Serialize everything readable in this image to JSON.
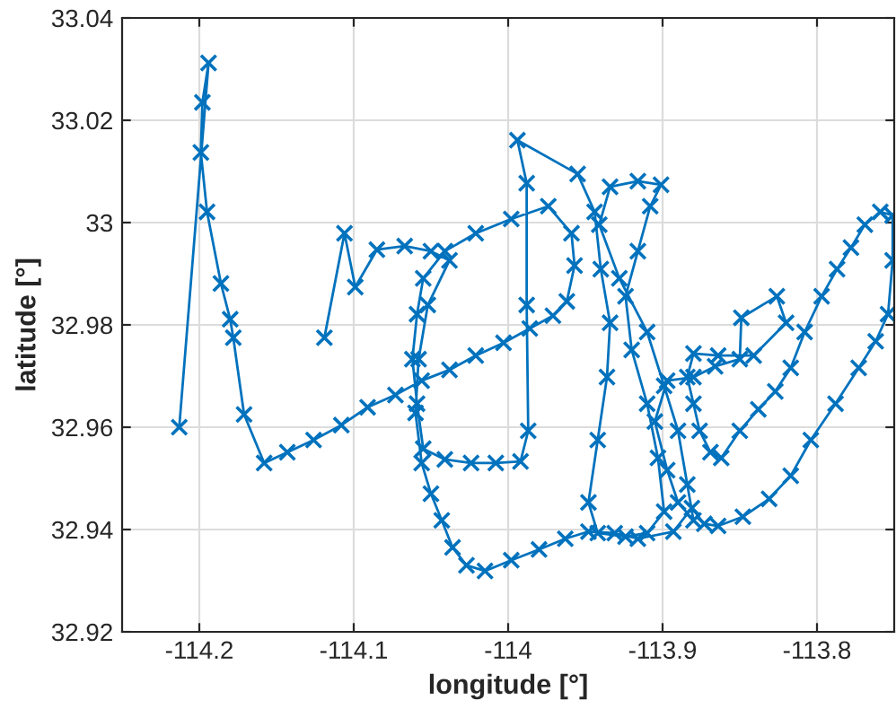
{
  "chart_data": {
    "type": "line",
    "xlabel": "longitude [°]",
    "ylabel": "latitude [°]",
    "marker": "cross",
    "line_style": "solid",
    "grid": true,
    "xlim": [
      -114.25,
      -113.75
    ],
    "xticks": [
      -114.2,
      -114.1,
      -114,
      -113.9,
      -113.8
    ],
    "ylim": [
      32.92,
      33.04
    ],
    "yticks": [
      32.92,
      32.94,
      32.96,
      32.98,
      33,
      33.02,
      33.04
    ],
    "series": [
      {
        "color": "#0072bd",
        "x": [
          -114.213,
          -114.194,
          -114.198,
          -114.199,
          -114.195,
          -114.186,
          -114.18,
          -114.178,
          -114.171,
          -114.158,
          -114.143,
          -114.126,
          -114.108,
          -114.091,
          -114.073,
          -114.056,
          -114.038,
          -114.021,
          -114.003,
          -113.986,
          -113.971,
          -113.962,
          -113.957,
          -113.959,
          -113.974,
          -113.998,
          -114.021,
          -114.041,
          -114.055,
          -114.059,
          -114.062,
          -114.059,
          -114.055,
          -114.041,
          -114.024,
          -114.008,
          -113.992,
          -113.987,
          -113.988,
          -113.988,
          -113.994,
          -113.955,
          -113.944,
          -113.94,
          -113.934,
          -113.936,
          -113.942,
          -113.948,
          -113.942,
          -113.924,
          -113.91,
          -113.899,
          -113.903,
          -113.91,
          -113.92,
          -113.924,
          -113.916,
          -113.908,
          -113.901,
          -113.916,
          -113.934,
          -113.941,
          -113.928,
          -113.91,
          -113.899,
          -113.89,
          -113.884,
          -113.88,
          -113.89,
          -113.897,
          -113.905,
          -113.897,
          -113.88,
          -113.866,
          -113.85,
          -113.849,
          -113.826,
          -113.82,
          -113.841,
          -113.864,
          -113.88,
          -113.884,
          -113.88,
          -113.876,
          -113.869,
          -113.862,
          -113.85,
          -113.838,
          -113.827,
          -113.817,
          -113.808,
          -113.797,
          -113.787,
          -113.778,
          -113.769,
          -113.759,
          -113.751,
          -113.751,
          -113.754,
          -113.762,
          -113.773,
          -113.788,
          -113.804,
          -113.817,
          -113.831,
          -113.848,
          -113.864,
          -113.873,
          -113.881,
          -113.893,
          -113.916,
          -113.931,
          -113.948,
          -113.963,
          -113.98,
          -113.998,
          -114.015,
          -114.027,
          -114.036,
          -114.043,
          -114.05,
          -114.056,
          -114.06,
          -114.058,
          -114.052,
          -114.038,
          -114.05,
          -114.067,
          -114.085,
          -114.099,
          -114.106,
          -114.119
        ],
        "values": [
          32.96,
          33.0312,
          33.0235,
          33.0137,
          33.0021,
          32.9881,
          32.9811,
          32.9775,
          32.9625,
          32.953,
          32.9551,
          32.9575,
          32.9604,
          32.9639,
          32.9663,
          32.9691,
          32.9712,
          32.974,
          32.9765,
          32.9793,
          32.9818,
          32.9846,
          32.9916,
          32.9979,
          33.0032,
          33.0007,
          32.9979,
          32.9944,
          32.9891,
          32.9821,
          32.9733,
          32.9646,
          32.9558,
          32.9537,
          32.953,
          32.953,
          32.9533,
          32.9593,
          32.9839,
          33.0077,
          33.0161,
          33.0095,
          33.0021,
          32.9909,
          32.9804,
          32.9698,
          32.9575,
          32.9453,
          32.9393,
          32.9386,
          32.9393,
          32.9435,
          32.954,
          32.9646,
          32.9751,
          32.9856,
          32.9944,
          33.0032,
          33.0074,
          33.0081,
          33.007,
          32.9996,
          32.9891,
          32.9786,
          32.9681,
          32.9593,
          32.9488,
          32.9418,
          32.9453,
          32.9516,
          32.9611,
          32.9691,
          32.9698,
          32.9719,
          32.9733,
          32.9814,
          32.9856,
          32.9804,
          32.974,
          32.974,
          32.9744,
          32.9698,
          32.9646,
          32.9593,
          32.9551,
          32.954,
          32.9593,
          32.9635,
          32.967,
          32.9716,
          32.9786,
          32.9856,
          32.9909,
          32.9951,
          32.9996,
          33.0021,
          33.0014,
          32.9926,
          32.9821,
          32.9768,
          32.9716,
          32.9646,
          32.9575,
          32.9505,
          32.946,
          32.9425,
          32.9407,
          32.9411,
          32.9442,
          32.9396,
          32.9382,
          32.9393,
          32.9396,
          32.9382,
          32.9361,
          32.934,
          32.9319,
          32.933,
          32.9365,
          32.9418,
          32.947,
          32.953,
          32.9628,
          32.9733,
          32.9839,
          32.9926,
          32.9944,
          32.9954,
          32.9947,
          32.9874,
          32.9979,
          32.9775
        ]
      }
    ]
  }
}
